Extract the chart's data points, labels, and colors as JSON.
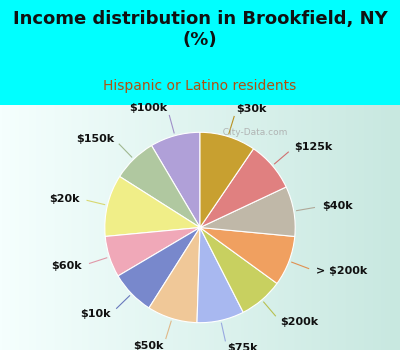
{
  "title": "Income distribution in Brookfield, NY\n(%)",
  "subtitle": "Hispanic or Latino residents",
  "title_color": "#111111",
  "subtitle_color": "#b05010",
  "bg_cyan": "#00ffff",
  "bg_chart_topleft": "#e8f8f5",
  "bg_chart_gradient_start": "#f0faf8",
  "bg_chart_gradient_end": "#d0ede8",
  "watermark": "City-Data.com",
  "labels": [
    "$100k",
    "$150k",
    "$20k",
    "$60k",
    "$10k",
    "$50k",
    "$75k",
    "$200k",
    "> $200k",
    "$40k",
    "$125k",
    "$30k"
  ],
  "values": [
    8.5,
    7.5,
    10.5,
    7.0,
    7.5,
    8.5,
    8.0,
    7.5,
    8.5,
    8.5,
    8.5,
    9.5
  ],
  "colors": [
    "#b0a0d8",
    "#b0c8a0",
    "#f0ee88",
    "#f0a8b8",
    "#7888cc",
    "#f0c898",
    "#a8b8f0",
    "#c8d060",
    "#f0a060",
    "#c0b8a8",
    "#e08080",
    "#c8a030"
  ],
  "line_colors": [
    "#a090c8",
    "#a0b890",
    "#d8d870",
    "#e098a8",
    "#6878bc",
    "#e0b888",
    "#98a8e0",
    "#b8c050",
    "#e09050",
    "#b0a898",
    "#d07070",
    "#b89020"
  ],
  "label_fontsize": 8,
  "startangle": 90,
  "title_fontsize": 13,
  "subtitle_fontsize": 10
}
